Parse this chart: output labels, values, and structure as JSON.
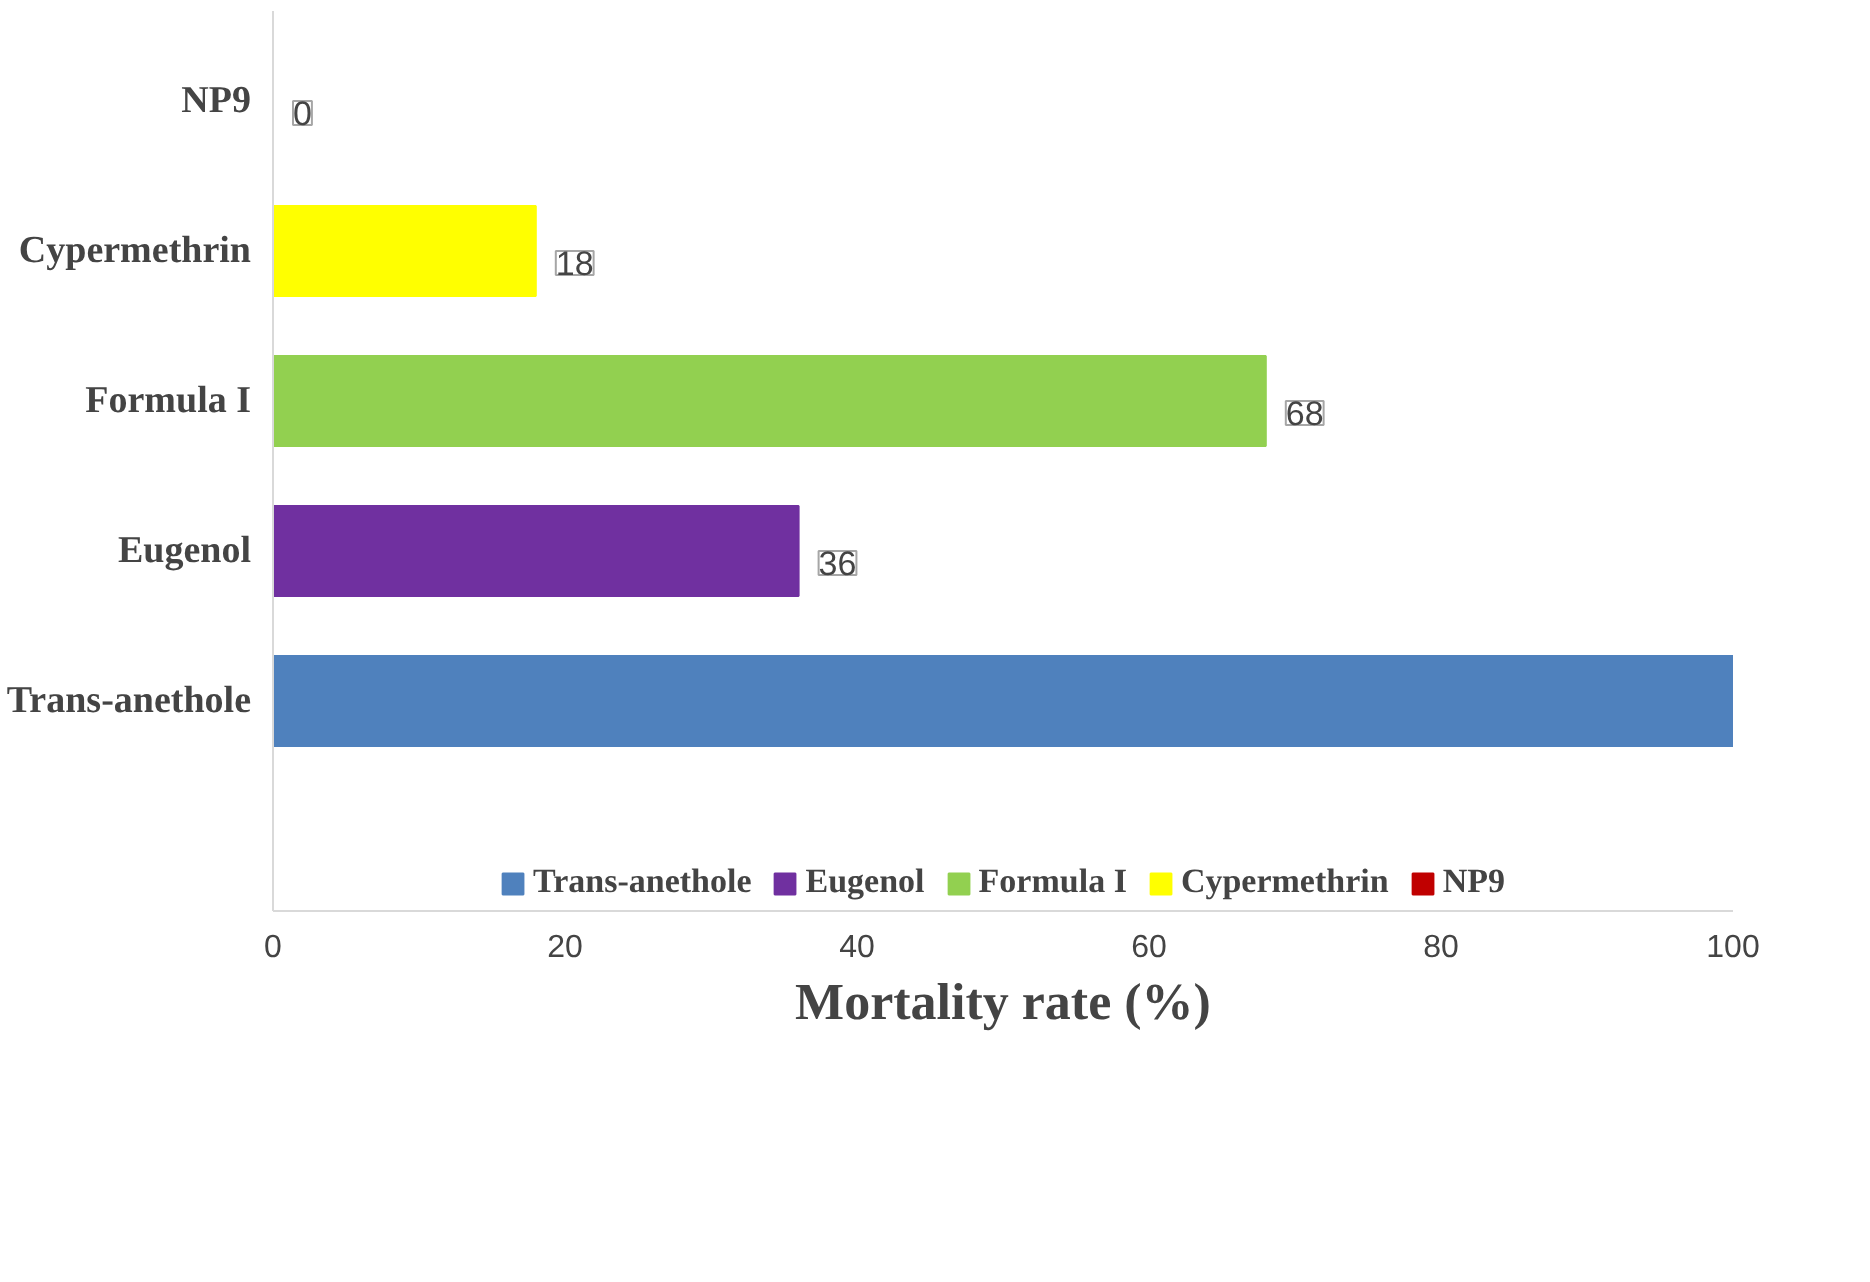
{
  "chart_data": {
    "type": "bar",
    "orientation": "horizontal",
    "xlabel": "Mortality rate (%)",
    "categories": [
      "NP9",
      "Cypermethrin",
      "Formula I",
      "Eugenol",
      "Trans-anethole"
    ],
    "series": [
      {
        "name": "Trans-anethole",
        "color": "#4f81bd",
        "values": [
          null,
          null,
          null,
          null,
          100
        ]
      },
      {
        "name": "Eugenol",
        "color": "#7030a0",
        "values": [
          null,
          null,
          null,
          36,
          null
        ],
        "value_labels": [
          null,
          null,
          null,
          "36",
          null
        ]
      },
      {
        "name": "Formula I",
        "color": "#92d050",
        "values": [
          null,
          null,
          68,
          null,
          null
        ],
        "value_labels": [
          null,
          null,
          "68",
          null,
          null
        ]
      },
      {
        "name": "Cypermethrin",
        "color": "#ffff00",
        "values": [
          null,
          18,
          null,
          null,
          null
        ],
        "value_labels": [
          null,
          "18",
          null,
          null,
          null
        ]
      },
      {
        "name": "NP9",
        "color": "#c00000",
        "values": [
          0,
          null,
          null,
          null,
          null
        ],
        "value_labels": [
          "0",
          null,
          null,
          null,
          null
        ]
      }
    ],
    "xlim": [
      0,
      100
    ],
    "xticks": [
      0,
      20,
      40,
      60,
      80,
      100
    ],
    "grid": false,
    "legend": "bottom"
  }
}
